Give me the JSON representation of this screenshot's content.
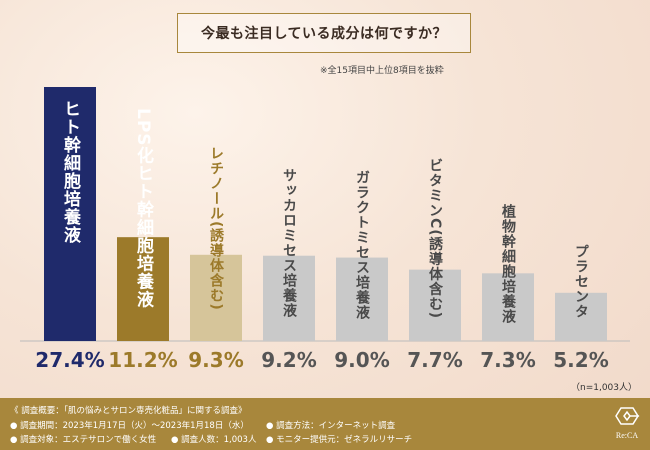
{
  "title": "今最も注目している成分は何ですか？",
  "note": "※全15項目中上位8項目を抜粋",
  "sample_note": "（n=1,003人）",
  "colors": {
    "top": "#1f2a6b",
    "second": "#9c7a2a",
    "third": "#d6c59a",
    "rest": "#c9c9c9",
    "footer": "#a8873c"
  },
  "chart_data": {
    "type": "bar",
    "categories": [
      "ヒト幹細胞培養液",
      "LPS化ヒト幹細胞培養液",
      "レチノール(誘導体含む)",
      "サッカロミセス培養液",
      "ガラクトミセス培養液",
      "ビタミンC(誘導体含む)",
      "植物幹細胞培養液",
      "プラセンタ"
    ],
    "values": [
      27.4,
      11.2,
      9.3,
      9.2,
      9.0,
      7.7,
      7.3,
      5.2
    ],
    "value_labels": [
      "27.4%",
      "11.2%",
      "9.3%",
      "9.2%",
      "9.0%",
      "7.7%",
      "7.3%",
      "5.2%"
    ],
    "ylim": [
      0,
      27.4
    ]
  },
  "footer": {
    "line1": "《 調査概要：「肌の悩みとサロン専売化粧品」に関する調査》",
    "period": "● 調査期間：2023年1月17日（火）〜2023年1月18日（水）",
    "method": "● 調査方法：インターネット調査",
    "target": "● 調査対象：エステサロンで働く女性",
    "count": "● 調査人数：1,003人",
    "provider": "● モニター提供元：ゼネラルリサーチ",
    "logo_text": "Re:CA"
  }
}
